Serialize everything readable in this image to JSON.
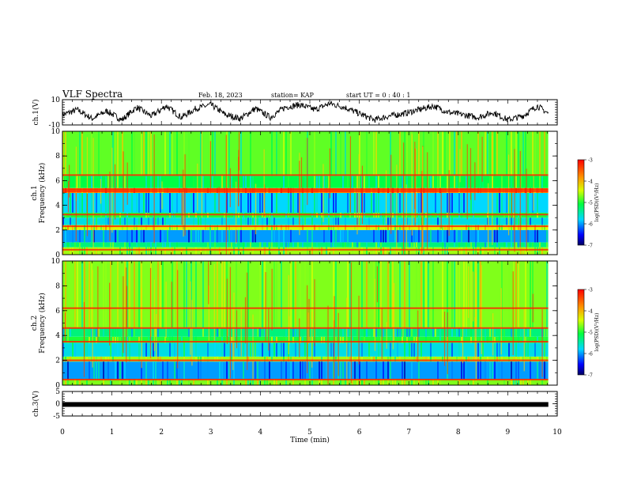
{
  "header": {
    "title": "VLF Spectra",
    "date": "Feb. 18, 2023",
    "station": "station= KAP",
    "start": "start UT = 0 : 40 : 1"
  },
  "chart_data": [
    {
      "type": "line",
      "id": "ch1-waveform",
      "ylabel": "ch.1(V)",
      "ylim": [
        -10,
        10
      ],
      "yticks": [
        -10,
        10
      ],
      "xlim": [
        0,
        10
      ],
      "x_end": 9.82,
      "description_values": "noisy waveform oscillating roughly between -8 and 9 V",
      "x": [
        0,
        0.3,
        0.6,
        0.9,
        1.2,
        1.5,
        1.8,
        2.1,
        2.4,
        2.7,
        3.0,
        3.3,
        3.6,
        3.9,
        4.2,
        4.5,
        4.8,
        5.1,
        5.4,
        5.7,
        6.0,
        6.3,
        6.6,
        6.9,
        7.2,
        7.5,
        7.8,
        8.1,
        8.4,
        8.7,
        9.0,
        9.3,
        9.6,
        9.82
      ],
      "y": [
        -2,
        2,
        -5,
        1,
        -6,
        4,
        -3,
        5,
        -4,
        3,
        6,
        -2,
        -5,
        3,
        -4,
        4,
        6,
        2,
        7,
        4,
        -1,
        -6,
        -3,
        -1,
        2,
        5,
        0,
        -2,
        -4,
        0,
        -6,
        -3,
        5,
        -1
      ]
    },
    {
      "type": "heatmap",
      "id": "ch1-spectrogram",
      "ylabel": "ch.1\nFrequency (kHz)",
      "ylim": [
        0,
        10
      ],
      "yticks": [
        0,
        2,
        4,
        6,
        8,
        10
      ],
      "xlim": [
        0,
        10
      ],
      "x_end": 9.82,
      "colorbar": {
        "label": "log(PSD)(V²/Hz)",
        "ticks": [
          -3,
          -4,
          -5,
          -6,
          -7
        ],
        "range": [
          -7,
          -3
        ]
      },
      "bands": [
        {
          "from": 0,
          "to": 0.6,
          "level": -4.6
        },
        {
          "from": 0.6,
          "to": 1.0,
          "level": -5.3
        },
        {
          "from": 1.0,
          "to": 2.0,
          "level": -6.0
        },
        {
          "from": 2.0,
          "to": 2.4,
          "level": -4.4
        },
        {
          "from": 2.4,
          "to": 3.0,
          "level": -5.7
        },
        {
          "from": 3.0,
          "to": 3.4,
          "level": -5.0
        },
        {
          "from": 3.4,
          "to": 5.0,
          "level": -5.8
        },
        {
          "from": 5.0,
          "to": 5.4,
          "level": -3.7
        },
        {
          "from": 5.4,
          "to": 6.4,
          "level": -5.1
        },
        {
          "from": 6.4,
          "to": 10.0,
          "level": -4.8
        }
      ],
      "lines_kHz": [
        0.4,
        2.3,
        3.25,
        5.15,
        5.3,
        6.45
      ]
    },
    {
      "type": "heatmap",
      "id": "ch2-spectrogram",
      "ylabel": "ch.2\nFrequency (kHz)",
      "ylim": [
        0,
        10
      ],
      "yticks": [
        0,
        2,
        4,
        6,
        8,
        10
      ],
      "xlim": [
        0,
        10
      ],
      "x_end": 9.82,
      "colorbar": {
        "label": "log(PSD)(V²/Hz)",
        "ticks": [
          -3,
          -4,
          -5,
          -6,
          -7
        ],
        "range": [
          -7,
          -3
        ]
      },
      "bands": [
        {
          "from": 0,
          "to": 0.5,
          "level": -4.7
        },
        {
          "from": 0.5,
          "to": 1.9,
          "level": -6.0
        },
        {
          "from": 1.9,
          "to": 2.3,
          "level": -4.6
        },
        {
          "from": 2.3,
          "to": 3.4,
          "level": -5.7
        },
        {
          "from": 3.4,
          "to": 3.9,
          "level": -5.0
        },
        {
          "from": 3.9,
          "to": 4.6,
          "level": -5.3
        },
        {
          "from": 4.6,
          "to": 10.0,
          "level": -4.7
        }
      ],
      "lines_kHz": [
        0.45,
        2.0,
        3.5,
        4.6,
        6.2
      ]
    },
    {
      "type": "line",
      "id": "ch3-signal",
      "ylabel": "ch.3(V)",
      "ylim": [
        -5,
        5
      ],
      "yticks": [
        -5,
        0,
        5
      ],
      "xlim": [
        0,
        10
      ],
      "x_end": 9.82,
      "x": [
        0,
        9.82
      ],
      "y": [
        -0.3,
        -0.3
      ]
    }
  ],
  "xaxis": {
    "label": "Time (min)",
    "ticks": [
      "0",
      "1",
      "2",
      "3",
      "4",
      "5",
      "6",
      "7",
      "8",
      "9",
      "10"
    ]
  }
}
